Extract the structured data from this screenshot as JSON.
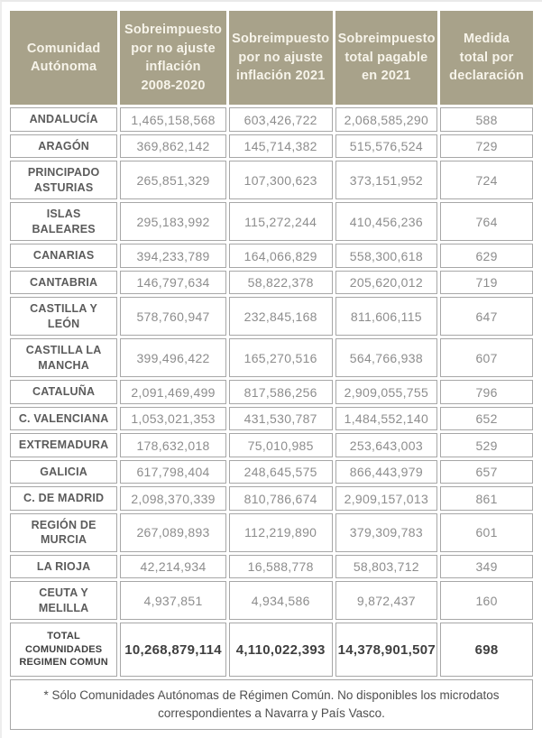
{
  "colors": {
    "header_bg": "#a8a28a",
    "header_text": "#f7f4ea",
    "cell_border": "#a7a7a7",
    "name_text": "#5b5b5b",
    "value_text": "#8d8d8d",
    "total_text": "#3f3f3f"
  },
  "table": {
    "columns": [
      "Comunidad\nAutónoma",
      "Sobreimpuesto\npor no ajuste\ninflación\n2008-2020",
      "Sobreimpuesto\npor no ajuste\ninflación 2021",
      "Sobreimpuesto\ntotal pagable\nen 2021",
      "Medida\ntotal por\ndeclaración"
    ],
    "rows": [
      {
        "name": "ANDALUCÍA",
        "values": [
          "1,465,158,568",
          "603,426,722",
          "2,068,585,290",
          "588"
        ]
      },
      {
        "name": "ARAGÓN",
        "values": [
          "369,862,142",
          "145,714,382",
          "515,576,524",
          "729"
        ]
      },
      {
        "name": "PRINCIPADO\nASTURIAS",
        "values": [
          "265,851,329",
          "107,300,623",
          "373,151,952",
          "724"
        ]
      },
      {
        "name": "ISLAS\nBALEARES",
        "values": [
          "295,183,992",
          "115,272,244",
          "410,456,236",
          "764"
        ]
      },
      {
        "name": "CANARIAS",
        "values": [
          "394,233,789",
          "164,066,829",
          "558,300,618",
          "629"
        ]
      },
      {
        "name": "CANTABRIA",
        "values": [
          "146,797,634",
          "58,822,378",
          "205,620,012",
          "719"
        ]
      },
      {
        "name": "CASTILLA Y\nLEÓN",
        "values": [
          "578,760,947",
          "232,845,168",
          "811,606,115",
          "647"
        ]
      },
      {
        "name": "CASTILLA LA\nMANCHA",
        "values": [
          "399,496,422",
          "165,270,516",
          "564,766,938",
          "607"
        ]
      },
      {
        "name": "CATALUÑA",
        "values": [
          "2,091,469,499",
          "817,586,256",
          "2,909,055,755",
          "796"
        ]
      },
      {
        "name": "C. VALENCIANA",
        "values": [
          "1,053,021,353",
          "431,530,787",
          "1,484,552,140",
          "652"
        ]
      },
      {
        "name": "EXTREMADURA",
        "values": [
          "178,632,018",
          "75,010,985",
          "253,643,003",
          "529"
        ]
      },
      {
        "name": "GALICIA",
        "values": [
          "617,798,404",
          "248,645,575",
          "866,443,979",
          "657"
        ]
      },
      {
        "name": "C. DE MADRID",
        "values": [
          "2,098,370,339",
          "810,786,674",
          "2,909,157,013",
          "861"
        ]
      },
      {
        "name": "REGIÓN DE\nMURCIA",
        "values": [
          "267,089,893",
          "112,219,890",
          "379,309,783",
          "601"
        ]
      },
      {
        "name": "LA RIOJA",
        "values": [
          "42,214,934",
          "16,588,778",
          "58,803,712",
          "349"
        ]
      },
      {
        "name": "CEUTA Y\nMELILLA",
        "values": [
          "4,937,851",
          "4,934,586",
          "9,872,437",
          "160"
        ]
      }
    ],
    "total": {
      "name": "TOTAL\nCOMUNIDADES\nREGIMEN COMUN",
      "values": [
        "10,268,879,114",
        "4,110,022,393",
        "14,378,901,507",
        "698"
      ]
    },
    "footnote": "* Sólo Comunidades Autónomas de Régimen Común. No disponibles los microdatos correspondientes a Navarra y País Vasco."
  },
  "chart_data": {
    "type": "table",
    "title": "",
    "columns": [
      "Comunidad Autónoma",
      "Sobreimpuesto por no ajuste inflación 2008-2020",
      "Sobreimpuesto por no ajuste inflación 2021",
      "Sobreimpuesto total pagable en 2021",
      "Medida total por declaración"
    ],
    "rows": [
      [
        "ANDALUCÍA",
        1465158568,
        603426722,
        2068585290,
        588
      ],
      [
        "ARAGÓN",
        369862142,
        145714382,
        515576524,
        729
      ],
      [
        "PRINCIPADO ASTURIAS",
        265851329,
        107300623,
        373151952,
        724
      ],
      [
        "ISLAS BALEARES",
        295183992,
        115272244,
        410456236,
        764
      ],
      [
        "CANARIAS",
        394233789,
        164066829,
        558300618,
        629
      ],
      [
        "CANTABRIA",
        146797634,
        58822378,
        205620012,
        719
      ],
      [
        "CASTILLA Y LEÓN",
        578760947,
        232845168,
        811606115,
        647
      ],
      [
        "CASTILLA LA MANCHA",
        399496422,
        165270516,
        564766938,
        607
      ],
      [
        "CATALUÑA",
        2091469499,
        817586256,
        2909055755,
        796
      ],
      [
        "C. VALENCIANA",
        1053021353,
        431530787,
        1484552140,
        652
      ],
      [
        "EXTREMADURA",
        178632018,
        75010985,
        253643003,
        529
      ],
      [
        "GALICIA",
        617798404,
        248645575,
        866443979,
        657
      ],
      [
        "C. DE MADRID",
        2098370339,
        810786674,
        2909157013,
        861
      ],
      [
        "REGIÓN DE MURCIA",
        267089893,
        112219890,
        379309783,
        601
      ],
      [
        "LA RIOJA",
        42214934,
        16588778,
        58803712,
        349
      ],
      [
        "CEUTA Y MELILLA",
        4937851,
        4934586,
        9872437,
        160
      ]
    ],
    "total_row": [
      "TOTAL COMUNIDADES REGIMEN COMUN",
      10268879114,
      4110022393,
      14378901507,
      698
    ],
    "footnote": "* Sólo Comunidades Autónomas de Régimen Común. No disponibles los microdatos correspondientes a Navarra y País Vasco."
  }
}
